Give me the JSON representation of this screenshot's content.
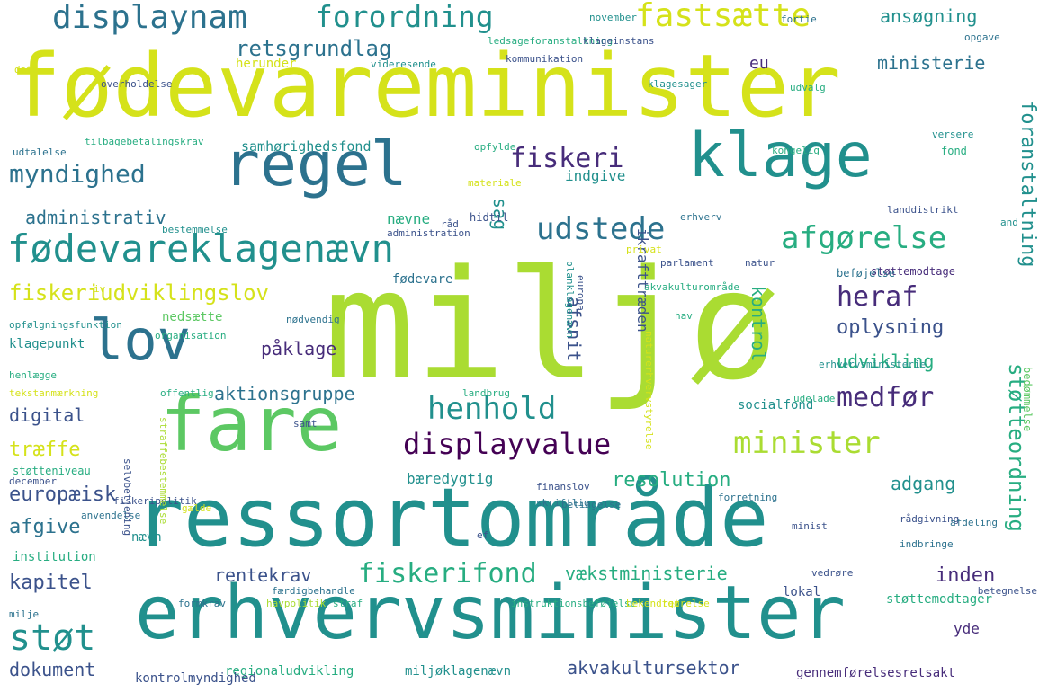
{
  "colors": {
    "background": "#ffffff",
    "palette": [
      "#440154",
      "#472c7a",
      "#3b528b",
      "#2c728e",
      "#21908d",
      "#27ad81",
      "#5cc863",
      "#aadc32",
      "#d5e21a",
      "#fde725"
    ]
  },
  "words": [
    "miljø",
    "fødevareminister",
    "ressortområde",
    "erhvervsminister",
    "fare",
    "regel",
    "klage",
    "lov",
    "fødevareklagenævn",
    "fastsætte",
    "displaynam",
    "forordning",
    "minister",
    "displayvalue",
    "henhold",
    "udstede",
    "afgørelse",
    "myndighed",
    "medfør",
    "fiskeriudviklingslov",
    "fiskerifond",
    "støt",
    "heraf",
    "fiskeri",
    "retsgrundlag",
    "støtteordning",
    "foranstaltning",
    "ansøgning",
    "ministerie",
    "administrativ",
    "oplysning",
    "udvikling",
    "europæisk",
    "kapitel",
    "inden",
    "aktionsgruppe",
    "adgang",
    "resolution",
    "vækstministerie",
    "dokument",
    "akvakultursektor",
    "digital",
    "påklage",
    "afsnit",
    "kontrol",
    "afgive",
    "træffe",
    "rentekrav",
    "bæredygtig",
    "yde",
    "sag",
    "nævne",
    "indgive",
    "eu",
    "samhørighedsfond",
    "fødevare",
    "socialfond",
    "lokal",
    "støttemodtager",
    "regionaludvikling",
    "miljøklagenævn",
    "gennemførelsesretsakt",
    "nedsætte",
    "klagepunkt",
    "herunder",
    "videresende",
    "kommunikation",
    "klagesager",
    "udvalg",
    "landdistrikt",
    "europa",
    "planklagenævn",
    "ikrafttræden",
    "akvakulturområde",
    "støttemodtage",
    "beføjelse",
    "parlament",
    "natur",
    "fond",
    "opfylde",
    "hidtil",
    "erhverv",
    "administration",
    "bestemmelse",
    "nødvendig",
    "organisation",
    "opfølgningsfunktion",
    "henlægge",
    "offentlig",
    "tekstanmærkning",
    "støtteniveau",
    "december",
    "fiskeripolitik",
    "anvendelse",
    "institution",
    "færdigbehandle",
    "formkrav",
    "havpolitik",
    "straf",
    "instruktionsbeføjelse",
    "bekendtgørelse",
    "ret",
    "milje",
    "kontrolmyndighed",
    "forretning",
    "betingelse",
    "finanslov",
    "skriftlig",
    "selvbetjening",
    "landbrug",
    "udelade",
    "rådgivning",
    "indbringe",
    "vedrøre",
    "betegnelse",
    "hav",
    "privat",
    "materiale",
    "udtalelse",
    "kongelig",
    "tilbagebetalingskrav",
    "ledsageforanstaltning",
    "november",
    "fortie",
    "klageinstans",
    "opgave",
    "dato",
    "overholdelse",
    "versere",
    "afdeling",
    "gælde",
    "ef",
    "minist",
    "nævn",
    "råd",
    "and",
    "iv",
    "samt",
    "erhvervsministerie",
    "bedømmelse",
    "naturerhvervstyrelse",
    "straffebestemmelse",
    "genoptage"
  ]
}
